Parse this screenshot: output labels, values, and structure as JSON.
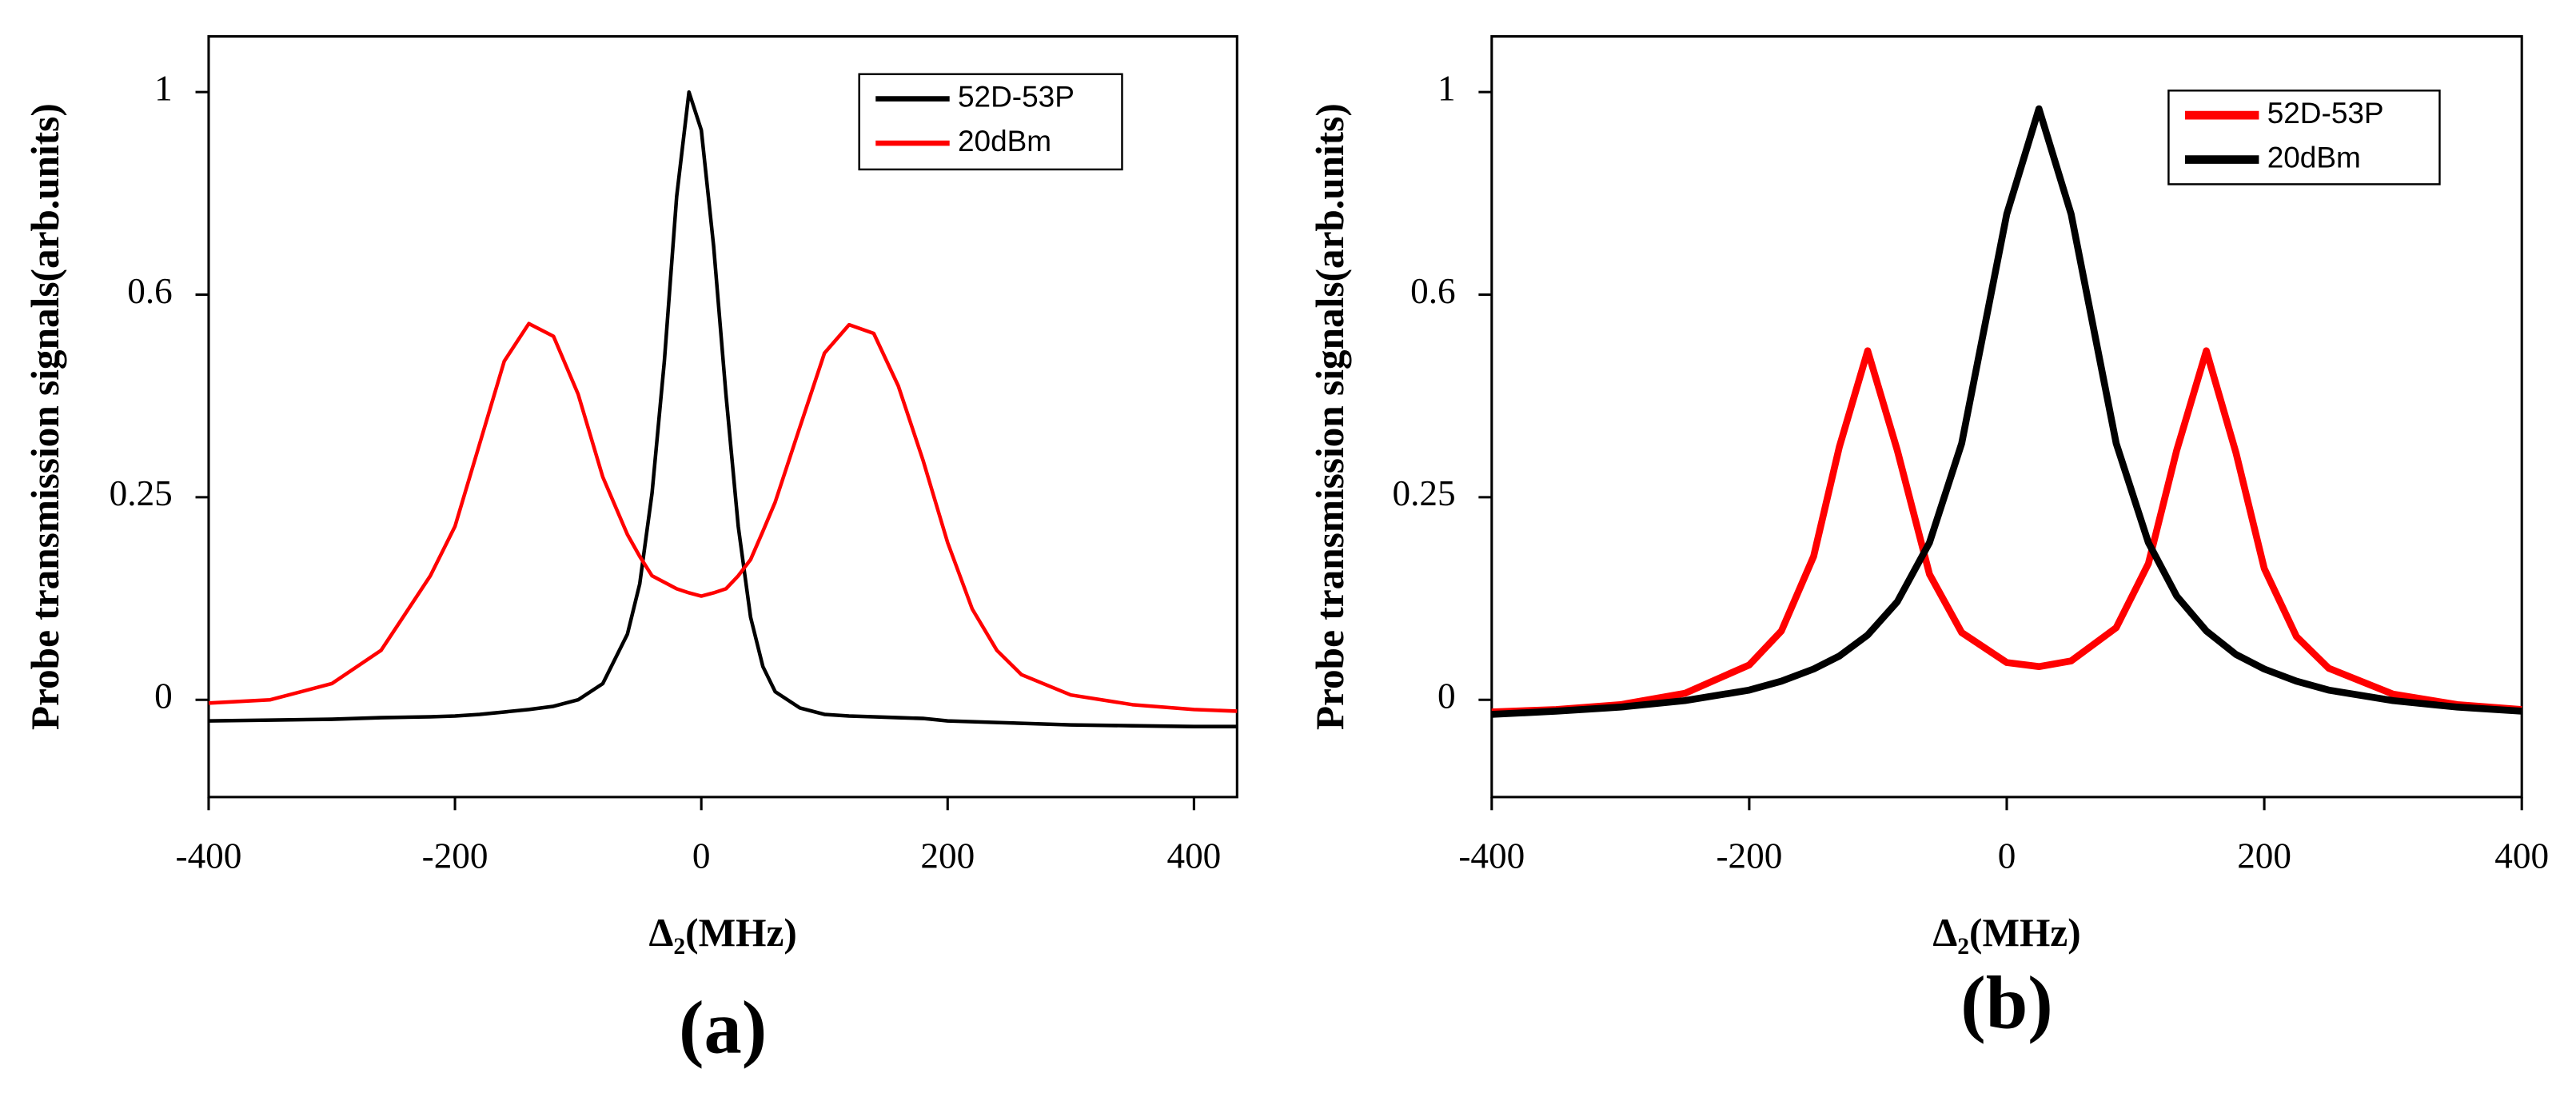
{
  "chart_data": [
    {
      "type": "line",
      "title": "(a)",
      "x_label": "Δ₂(MHz)",
      "y_label": "Probe transmission signals(arb.units)",
      "x": [
        -400,
        -350,
        -300,
        -260,
        -220,
        -200,
        -180,
        -160,
        -140,
        -120,
        -100,
        -80,
        -60,
        -50,
        -40,
        -30,
        -20,
        -10,
        0,
        10,
        20,
        30,
        40,
        50,
        60,
        80,
        100,
        120,
        140,
        160,
        180,
        200,
        220,
        240,
        260,
        300,
        350,
        400,
        435
      ],
      "series": [
        {
          "name": "52D-53P",
          "color": "#000000",
          "values": [
            -0.026,
            -0.025,
            -0.024,
            -0.022,
            -0.021,
            -0.02,
            -0.018,
            -0.015,
            -0.012,
            -0.008,
            0,
            0.02,
            0.081,
            0.143,
            0.257,
            0.485,
            0.794,
            1.0,
            0.925,
            0.696,
            0.428,
            0.214,
            0.102,
            0.041,
            0.01,
            -0.01,
            -0.018,
            -0.02,
            -0.021,
            -0.022,
            -0.023,
            -0.026,
            -0.027,
            -0.028,
            -0.029,
            -0.031,
            -0.032,
            -0.033,
            -0.033
          ]
        },
        {
          "name": "20dBm",
          "color": "#ff0000",
          "values": [
            -0.004,
            0,
            0.02,
            0.061,
            0.153,
            0.214,
            0.342,
            0.485,
            0.55,
            0.528,
            0.428,
            0.285,
            0.204,
            0.177,
            0.153,
            0.145,
            0.137,
            0.132,
            0.128,
            0.132,
            0.137,
            0.153,
            0.173,
            0.208,
            0.244,
            0.371,
            0.499,
            0.548,
            0.533,
            0.442,
            0.314,
            0.194,
            0.112,
            0.061,
            0.031,
            0.006,
            -0.006,
            -0.012,
            -0.014
          ]
        }
      ],
      "xlim": [
        -400,
        435
      ],
      "xticks": [
        -400,
        -200,
        0,
        200,
        400
      ],
      "ylim": [
        -0.12,
        1.11
      ],
      "yticks": [
        0,
        0.25,
        0.6,
        1
      ],
      "yscale": "tick-spaced",
      "legend": "upper right"
    },
    {
      "type": "line",
      "title": "(b)",
      "x_label": "Δ₂(MHz)",
      "y_label": "Probe transmission signals(arb.units)",
      "x": [
        -400,
        -350,
        -300,
        -250,
        -200,
        -175,
        -150,
        -130,
        -108,
        -85,
        -60,
        -35,
        0,
        25,
        50,
        85,
        110,
        132,
        155,
        178,
        200,
        225,
        250,
        300,
        350,
        400
      ],
      "series": [
        {
          "name": "52D-53P",
          "color": "#ff0000",
          "values": [
            -0.015,
            -0.012,
            -0.006,
            0.008,
            0.043,
            0.085,
            0.177,
            0.337,
            0.503,
            0.331,
            0.155,
            0.083,
            0.046,
            0.041,
            0.048,
            0.089,
            0.168,
            0.331,
            0.503,
            0.327,
            0.162,
            0.078,
            0.039,
            0.007,
            -0.006,
            -0.012
          ]
        },
        {
          "name": "20dBm",
          "color": "#000000",
          "values": [
            -0.018,
            -0.014,
            -0.009,
            -0.001,
            0.012,
            0.023,
            0.038,
            0.054,
            0.08,
            0.121,
            0.194,
            0.343,
            0.759,
            0.967,
            0.759,
            0.343,
            0.194,
            0.128,
            0.085,
            0.056,
            0.038,
            0.023,
            0.012,
            -0.001,
            -0.009,
            -0.014
          ]
        }
      ],
      "xlim": [
        -400,
        400
      ],
      "xticks": [
        -400,
        -200,
        0,
        200,
        400
      ],
      "ylim": [
        -0.12,
        1.11
      ],
      "yticks": [
        0,
        0.25,
        0.6,
        1
      ],
      "yscale": "tick-spaced",
      "legend": "upper right"
    }
  ]
}
